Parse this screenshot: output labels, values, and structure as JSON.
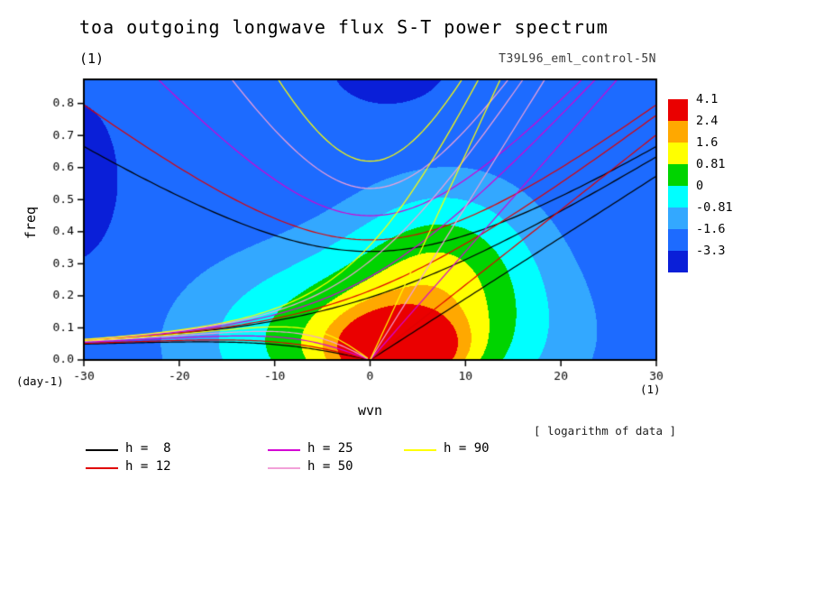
{
  "chart_data": {
    "type": "heatmap",
    "title": "toa outgoing longwave flux S-T power spectrum",
    "units_label": "(1)",
    "run_label": "T39L96_eml_control-5N",
    "xlabel": "wvn",
    "x_units": "(1)",
    "ylabel": "freq",
    "y_units": "(day-1)",
    "note": "[ logarithm of data ]",
    "xlim": [
      -30,
      30
    ],
    "ylim": [
      0,
      0.875
    ],
    "xticks": {
      "values": [
        -30,
        -20,
        -10,
        0,
        10,
        20,
        30
      ],
      "labels": [
        "-30",
        "-20",
        "-10",
        "0",
        "10",
        "20",
        "30"
      ]
    },
    "yticks": {
      "values": [
        0,
        0.1,
        0.2,
        0.3,
        0.4,
        0.5,
        0.6,
        0.7,
        0.8
      ],
      "labels": [
        "0.0",
        "0.1",
        "0.2",
        "0.3",
        "0.4",
        "0.5",
        "0.6",
        "0.7",
        "0.8"
      ]
    },
    "levels": [
      -3.3,
      -1.6,
      -0.81,
      0,
      0.81,
      1.6,
      2.4,
      4.1
    ],
    "palette": {
      "colors_ascending": [
        "#0a1fd8",
        "#1d6bff",
        "#33a8ff",
        "#00ffff",
        "#00d400",
        "#ffff00",
        "#ffa800",
        "#ea0000"
      ]
    },
    "colorbar_labels_top_to_bottom": [
      "4.1",
      "2.4",
      "1.6",
      "0.81",
      "0",
      "-0.81",
      "-1.6",
      "-3.3"
    ],
    "field": {
      "comment": "log10 power field approximated by gaussian bumps; x=zonal wavenumber, y=freq (cpd)",
      "base": -2.3,
      "gaussians": [
        {
          "a": 4.2,
          "x": 3,
          "y": 0.03,
          "sx": 6,
          "sy": 0.11
        },
        {
          "a": 3.4,
          "x": 0.5,
          "y": 0.06,
          "sx": 18,
          "sy": 0.28
        },
        {
          "a": 2.0,
          "x": 8,
          "y": 0.33,
          "sx": 10,
          "sy": 0.26
        },
        {
          "a": -1.8,
          "x": -31,
          "y": 0.55,
          "sx": 6,
          "sy": 0.33
        },
        {
          "a": -1.8,
          "x": 2,
          "y": 0.93,
          "sx": 8,
          "sy": 0.18
        }
      ]
    },
    "dispersion_curves": {
      "equivalent_depths_m": [
        8,
        12,
        25,
        50,
        90
      ],
      "colors": [
        "#000000",
        "#e00000",
        "#d400d4",
        "#f2a0d8",
        "#ffff00"
      ],
      "wave_types": [
        "kelvin",
        "equatorial_rossby_n1",
        "mixed_rossby_gravity_n0",
        "inertio_gravity_n1"
      ]
    },
    "legend": [
      {
        "label": "h =  8",
        "color": "#000000",
        "col": 0,
        "row": 0
      },
      {
        "label": "h = 12",
        "color": "#e00000",
        "col": 0,
        "row": 1
      },
      {
        "label": "h = 25",
        "color": "#d400d4",
        "col": 1,
        "row": 0
      },
      {
        "label": "h = 50",
        "color": "#f2a0d8",
        "col": 1,
        "row": 1
      },
      {
        "label": "h = 90",
        "color": "#ffff00",
        "col": 2,
        "row": 0
      }
    ]
  }
}
